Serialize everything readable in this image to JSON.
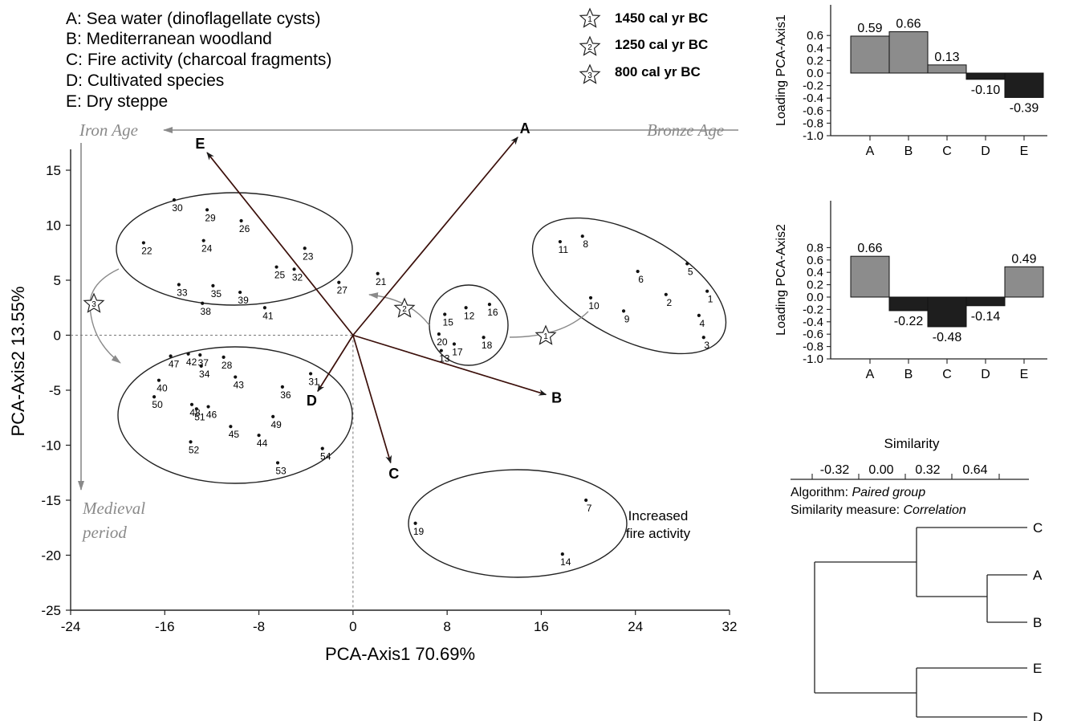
{
  "legend_groups": [
    "A: Sea water (dinoflagellate cysts)",
    "B: Mediterranean woodland",
    "C: Fire activity (charcoal fragments)",
    "D: Cultivated species",
    "E: Dry steppe"
  ],
  "legend_dates": [
    {
      "num": "1",
      "label": "1450 cal yr BC"
    },
    {
      "num": "2",
      "label": "1250 cal yr BC"
    },
    {
      "num": "3",
      "label": "800 cal yr BC"
    }
  ],
  "annotations": {
    "iron_age": "Iron Age",
    "bronze_age": "Bronze Age",
    "medieval_1": "Medieval",
    "medieval_2": "period",
    "fire_1": "Increased",
    "fire_2": "fire activity"
  },
  "colors": {
    "positive_bar": "#8c8c8c",
    "negative_bar": "#1e1e1e",
    "arrow": "#3b0f0a",
    "timeline": "#8a8a8a"
  },
  "chart_data": [
    {
      "type": "scatter",
      "xlabel": "PCA-Axis1 70.69%",
      "ylabel": "PCA-Axis2 13.55%",
      "xlim": [
        -24,
        32
      ],
      "ylim": [
        -25,
        15
      ],
      "xticks": [
        -24,
        -16,
        -8,
        0,
        8,
        16,
        24,
        32
      ],
      "yticks": [
        -25,
        -20,
        -15,
        -10,
        -5,
        0,
        5,
        10,
        15
      ],
      "points": [
        {
          "id": "1",
          "x": 30.1,
          "y": 4.0
        },
        {
          "id": "2",
          "x": 26.6,
          "y": 3.7
        },
        {
          "id": "3",
          "x": 29.8,
          "y": -0.2
        },
        {
          "id": "4",
          "x": 29.4,
          "y": 1.8
        },
        {
          "id": "5",
          "x": 28.4,
          "y": 6.5
        },
        {
          "id": "6",
          "x": 24.2,
          "y": 5.8
        },
        {
          "id": "7",
          "x": 19.8,
          "y": -15.0
        },
        {
          "id": "8",
          "x": 19.5,
          "y": 9.0
        },
        {
          "id": "9",
          "x": 23.0,
          "y": 2.2
        },
        {
          "id": "10",
          "x": 20.2,
          "y": 3.4
        },
        {
          "id": "11",
          "x": 17.6,
          "y": 8.5
        },
        {
          "id": "12",
          "x": 9.6,
          "y": 2.5
        },
        {
          "id": "13",
          "x": 7.5,
          "y": -1.4
        },
        {
          "id": "14",
          "x": 17.8,
          "y": -19.9
        },
        {
          "id": "15",
          "x": 7.8,
          "y": 1.9
        },
        {
          "id": "16",
          "x": 11.6,
          "y": 2.8
        },
        {
          "id": "17",
          "x": 8.6,
          "y": -0.8
        },
        {
          "id": "18",
          "x": 11.1,
          "y": -0.2
        },
        {
          "id": "19",
          "x": 5.3,
          "y": -17.1
        },
        {
          "id": "20",
          "x": 7.3,
          "y": 0.1
        },
        {
          "id": "21",
          "x": 2.1,
          "y": 5.6
        },
        {
          "id": "22",
          "x": -17.8,
          "y": 8.4
        },
        {
          "id": "23",
          "x": -4.1,
          "y": 7.9
        },
        {
          "id": "24",
          "x": -12.7,
          "y": 8.6
        },
        {
          "id": "25",
          "x": -6.5,
          "y": 6.2
        },
        {
          "id": "26",
          "x": -9.5,
          "y": 10.4
        },
        {
          "id": "27",
          "x": -1.2,
          "y": 4.8
        },
        {
          "id": "28",
          "x": -11.0,
          "y": -2.0
        },
        {
          "id": "29",
          "x": -12.4,
          "y": 11.4
        },
        {
          "id": "30",
          "x": -15.2,
          "y": 12.3
        },
        {
          "id": "31",
          "x": -3.6,
          "y": -3.5
        },
        {
          "id": "32",
          "x": -5.0,
          "y": 6.0
        },
        {
          "id": "33",
          "x": -14.8,
          "y": 4.6
        },
        {
          "id": "34",
          "x": -12.9,
          "y": -2.8
        },
        {
          "id": "35",
          "x": -11.9,
          "y": 4.5
        },
        {
          "id": "36",
          "x": -6.0,
          "y": -4.7
        },
        {
          "id": "37",
          "x": -13.0,
          "y": -1.8
        },
        {
          "id": "38",
          "x": -12.8,
          "y": 2.9
        },
        {
          "id": "39",
          "x": -9.6,
          "y": 3.9
        },
        {
          "id": "40",
          "x": -16.5,
          "y": -4.1
        },
        {
          "id": "41",
          "x": -7.5,
          "y": 2.5
        },
        {
          "id": "42",
          "x": -14.0,
          "y": -1.7
        },
        {
          "id": "43",
          "x": -10.0,
          "y": -3.8
        },
        {
          "id": "44",
          "x": -8.0,
          "y": -9.1
        },
        {
          "id": "45",
          "x": -10.4,
          "y": -8.3
        },
        {
          "id": "46",
          "x": -12.3,
          "y": -6.5
        },
        {
          "id": "47",
          "x": -15.5,
          "y": -1.9
        },
        {
          "id": "48",
          "x": -13.7,
          "y": -6.3
        },
        {
          "id": "49",
          "x": -6.8,
          "y": -7.4
        },
        {
          "id": "50",
          "x": -16.9,
          "y": -5.6
        },
        {
          "id": "51",
          "x": -13.3,
          "y": -6.7
        },
        {
          "id": "52",
          "x": -13.8,
          "y": -9.7
        },
        {
          "id": "53",
          "x": -6.4,
          "y": -11.6
        },
        {
          "id": "54",
          "x": -2.6,
          "y": -10.3
        }
      ],
      "vectors": [
        {
          "label": "A",
          "x": 14.0,
          "y": 18.0
        },
        {
          "label": "B",
          "x": 16.4,
          "y": -5.4
        },
        {
          "label": "C",
          "x": 3.2,
          "y": -11.6
        },
        {
          "label": "D",
          "x": -3.0,
          "y": -5.1
        },
        {
          "label": "E",
          "x": -12.4,
          "y": 16.6
        }
      ]
    },
    {
      "type": "bar",
      "categories": [
        "A",
        "B",
        "C",
        "D",
        "E"
      ],
      "values": [
        0.59,
        0.66,
        0.13,
        -0.1,
        -0.39
      ],
      "value_labels": [
        "0.59",
        "0.66",
        "0.13",
        "-0.10",
        "-0.39"
      ],
      "ylabel": "Loading PCA-Axis1",
      "ylim": [
        -1.0,
        0.6
      ],
      "yticks": [
        "0.6",
        "0.4",
        "0.2",
        "0.0",
        "-0.2",
        "-0.4",
        "-0.6",
        "-0.8",
        "-1.0"
      ]
    },
    {
      "type": "bar",
      "categories": [
        "A",
        "B",
        "C",
        "D",
        "E"
      ],
      "values": [
        0.66,
        -0.22,
        -0.48,
        -0.14,
        0.49
      ],
      "value_labels": [
        "0.66",
        "-0.22",
        "-0.48",
        "-0.14",
        "0.49"
      ],
      "ylabel": "Loading PCA-Axis2",
      "ylim": [
        -1.0,
        0.8
      ],
      "yticks": [
        "0.8",
        "0.6",
        "0.4",
        "0.2",
        "0.0",
        "-0.2",
        "-0.4",
        "-0.6",
        "-0.8",
        "-1.0"
      ]
    },
    {
      "type": "dendrogram",
      "xlabel": "Similarity",
      "xticks": [
        "-0.32",
        "0.00",
        "0.32",
        "0.64"
      ],
      "algorithm_label": "Algorithm: ",
      "algorithm": "Paired group",
      "measure_label": "Similarity measure: ",
      "measure": "Correlation",
      "leaves": [
        "C",
        "A",
        "B",
        "E",
        "D"
      ]
    }
  ]
}
